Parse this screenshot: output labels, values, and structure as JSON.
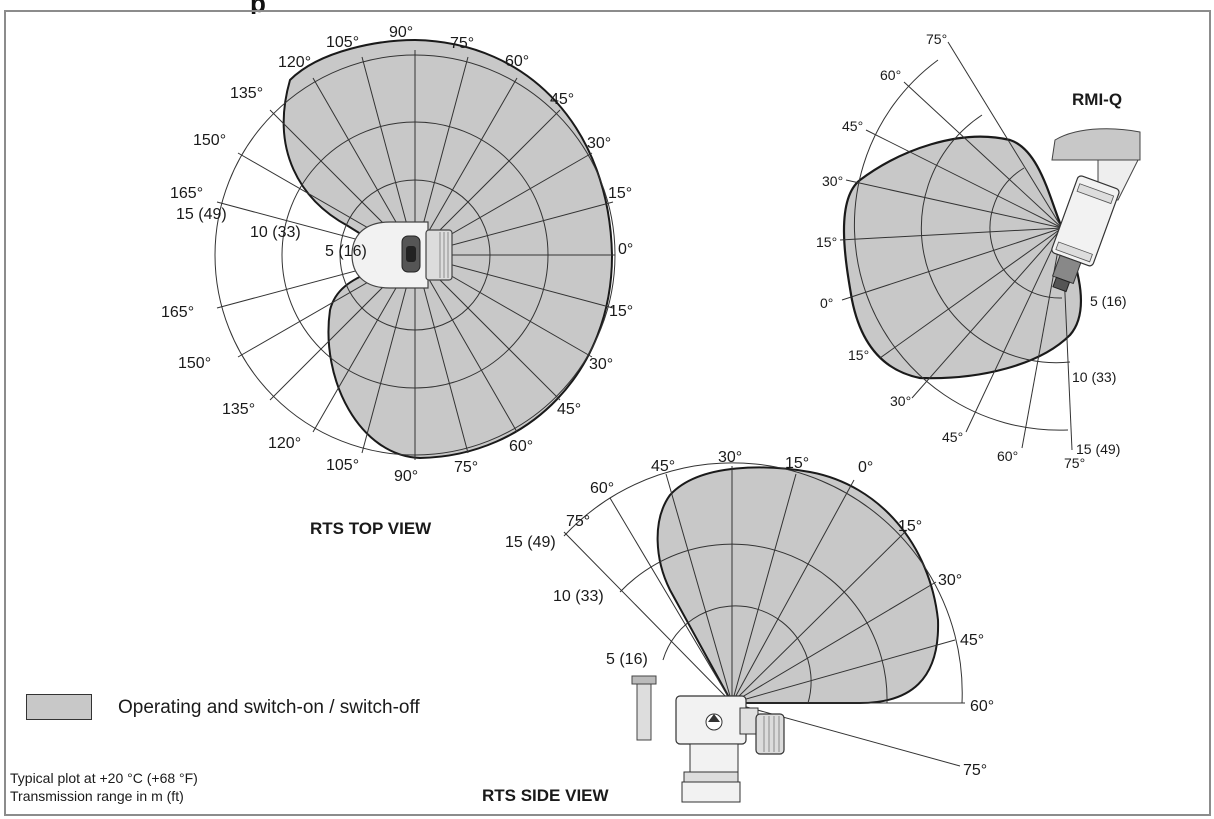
{
  "header": {
    "title_fragment": "p"
  },
  "top_view": {
    "title": "RTS TOP VIEW",
    "angles_upper": [
      "90°",
      "105°",
      "120°",
      "135°",
      "150°",
      "165°",
      "75°",
      "60°",
      "45°",
      "30°",
      "15°",
      "0°"
    ],
    "angles_lower": [
      "15°",
      "30°",
      "45°",
      "60°",
      "75°",
      "90°",
      "105°",
      "120°",
      "135°",
      "150°",
      "165°"
    ],
    "ranges": [
      "15 (49)",
      "10 (33)",
      "5 (16)"
    ]
  },
  "rmi_view": {
    "title": "RMI-Q",
    "angles": [
      "75°",
      "60°",
      "45°",
      "30°",
      "15°",
      "0°",
      "15°",
      "30°",
      "45°",
      "60°",
      "75°"
    ],
    "ranges": [
      "5 (16)",
      "10 (33)",
      "15 (49)"
    ]
  },
  "side_view": {
    "title": "RTS SIDE VIEW",
    "angles": [
      "75°",
      "60°",
      "45°",
      "30°",
      "15°",
      "0°",
      "15°",
      "30°",
      "45°",
      "60°",
      "75°"
    ],
    "ranges": [
      "15 (49)",
      "10 (33)",
      "5 (16)"
    ]
  },
  "legend": {
    "label": "Operating and switch-on / switch-off",
    "swatch_color": "#c8c8c8"
  },
  "notes": {
    "line1": "Typical plot at +20 °C (+68 °F)",
    "line2": "Transmission range in m (ft)"
  }
}
